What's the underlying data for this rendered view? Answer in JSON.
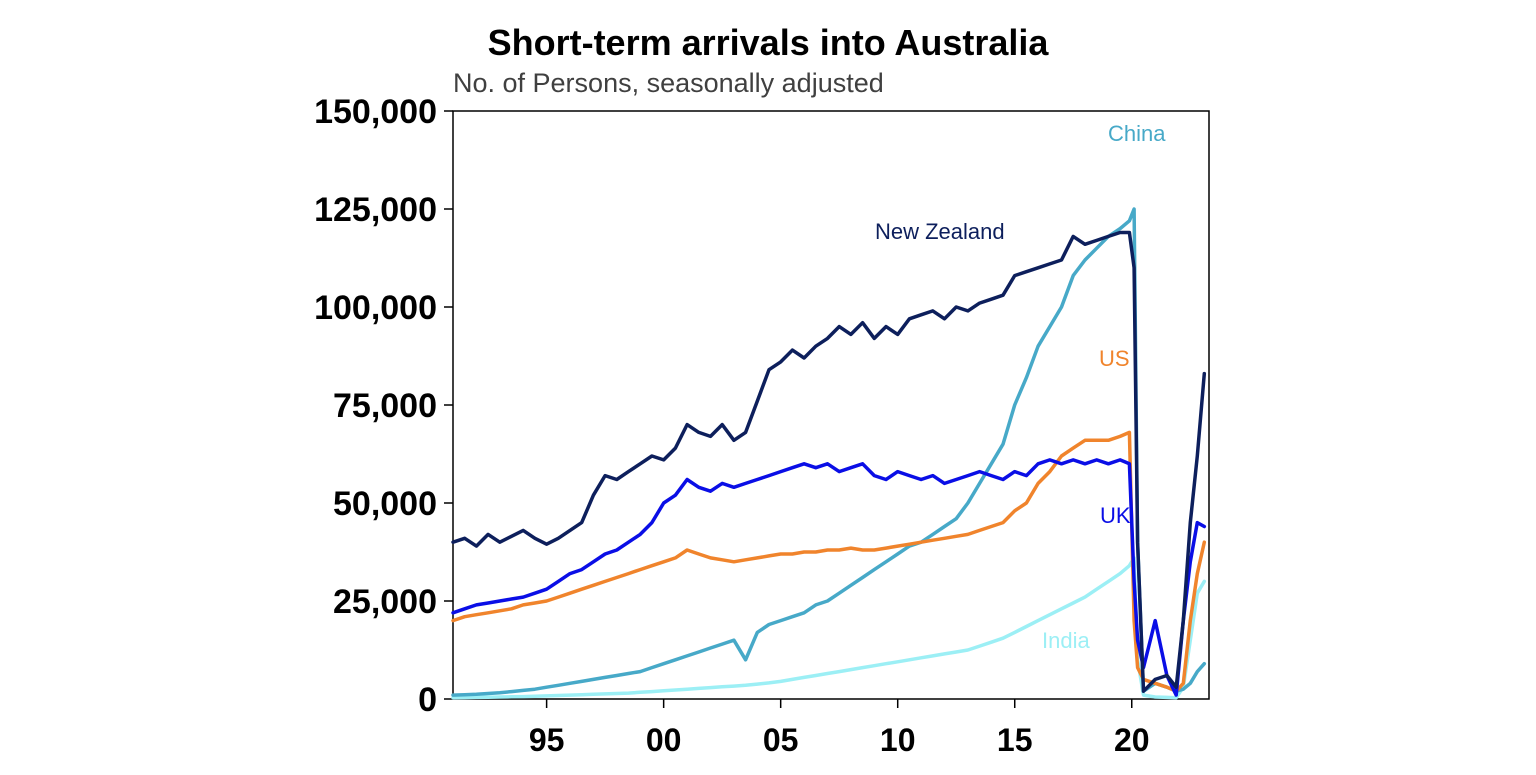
{
  "chart_data": {
    "type": "line",
    "title": "Short-term arrivals into Australia",
    "subtitle": "No. of Persons, seasonally adjusted",
    "xlabel": "",
    "ylabel": "",
    "xlim": [
      1991.0,
      2023.3
    ],
    "ylim": [
      0,
      150000
    ],
    "y_ticks": [
      0,
      25000,
      50000,
      75000,
      100000,
      125000,
      150000
    ],
    "y_tick_labels": [
      "0",
      "25,000",
      "50,000",
      "75,000",
      "100,000",
      "125,000",
      "150,000"
    ],
    "x_ticks": [
      1995,
      2000,
      2005,
      2010,
      2015,
      2020
    ],
    "x_tick_labels": [
      "95",
      "00",
      "05",
      "10",
      "15",
      "20"
    ],
    "grid": false,
    "legend": "inline labels",
    "series": [
      {
        "name": "New Zealand",
        "color": "#0d1f5c",
        "x": [
          1991.0,
          1991.5,
          1992.0,
          1992.5,
          1993.0,
          1993.5,
          1994.0,
          1994.5,
          1995.0,
          1995.5,
          1996.0,
          1996.5,
          1997.0,
          1997.5,
          1998.0,
          1998.5,
          1999.0,
          1999.5,
          2000.0,
          2000.5,
          2001.0,
          2001.5,
          2002.0,
          2002.5,
          2003.0,
          2003.5,
          2004.0,
          2004.5,
          2005.0,
          2005.5,
          2006.0,
          2006.5,
          2007.0,
          2007.5,
          2008.0,
          2008.5,
          2009.0,
          2009.5,
          2010.0,
          2010.5,
          2011.0,
          2011.5,
          2012.0,
          2012.5,
          2013.0,
          2013.5,
          2014.0,
          2014.5,
          2015.0,
          2015.5,
          2016.0,
          2016.5,
          2017.0,
          2017.5,
          2018.0,
          2018.5,
          2019.0,
          2019.5,
          2019.9,
          2020.1,
          2020.25,
          2020.5,
          2021.0,
          2021.5,
          2021.9,
          2022.2,
          2022.5,
          2022.8,
          2023.1
        ],
        "y": [
          40000,
          41000,
          39000,
          42000,
          40000,
          41500,
          43000,
          41000,
          39500,
          41000,
          43000,
          45000,
          52000,
          57000,
          56000,
          58000,
          60000,
          62000,
          61000,
          64000,
          70000,
          68000,
          67000,
          70000,
          66000,
          68000,
          76000,
          84000,
          86000,
          89000,
          87000,
          90000,
          92000,
          95000,
          93000,
          96000,
          92000,
          95000,
          93000,
          97000,
          98000,
          99000,
          97000,
          100000,
          99000,
          101000,
          102000,
          103000,
          108000,
          109000,
          110000,
          111000,
          112000,
          118000,
          116000,
          117000,
          118000,
          119000,
          119000,
          110000,
          40000,
          2000,
          5000,
          6000,
          3000,
          20000,
          45000,
          62000,
          83000
        ]
      },
      {
        "name": "UK",
        "color": "#0a0ee6",
        "x": [
          1991.0,
          1991.5,
          1992.0,
          1992.5,
          1993.0,
          1993.5,
          1994.0,
          1994.5,
          1995.0,
          1995.5,
          1996.0,
          1996.5,
          1997.0,
          1997.5,
          1998.0,
          1998.5,
          1999.0,
          1999.5,
          2000.0,
          2000.5,
          2001.0,
          2001.5,
          2002.0,
          2002.5,
          2003.0,
          2003.5,
          2004.0,
          2004.5,
          2005.0,
          2005.5,
          2006.0,
          2006.5,
          2007.0,
          2007.5,
          2008.0,
          2008.5,
          2009.0,
          2009.5,
          2010.0,
          2010.5,
          2011.0,
          2011.5,
          2012.0,
          2012.5,
          2013.0,
          2013.5,
          2014.0,
          2014.5,
          2015.0,
          2015.5,
          2016.0,
          2016.5,
          2017.0,
          2017.5,
          2018.0,
          2018.5,
          2019.0,
          2019.5,
          2019.9,
          2020.1,
          2020.25,
          2020.5,
          2021.0,
          2021.5,
          2021.9,
          2022.2,
          2022.5,
          2022.8,
          2023.1
        ],
        "y": [
          22000,
          23000,
          24000,
          24500,
          25000,
          25500,
          26000,
          27000,
          28000,
          30000,
          32000,
          33000,
          35000,
          37000,
          38000,
          40000,
          42000,
          45000,
          50000,
          52000,
          56000,
          54000,
          53000,
          55000,
          54000,
          55000,
          56000,
          57000,
          58000,
          59000,
          60000,
          59000,
          60000,
          58000,
          59000,
          60000,
          57000,
          56000,
          58000,
          57000,
          56000,
          57000,
          55000,
          56000,
          57000,
          58000,
          57000,
          56000,
          58000,
          57000,
          60000,
          61000,
          60000,
          61000,
          60000,
          61000,
          60000,
          61000,
          60000,
          30000,
          15000,
          8000,
          20000,
          6000,
          1000,
          20000,
          35000,
          45000,
          44000
        ]
      },
      {
        "name": "US",
        "color": "#f0842c",
        "x": [
          1991.0,
          1991.5,
          1992.0,
          1992.5,
          1993.0,
          1993.5,
          1994.0,
          1994.5,
          1995.0,
          1995.5,
          1996.0,
          1996.5,
          1997.0,
          1997.5,
          1998.0,
          1998.5,
          1999.0,
          1999.5,
          2000.0,
          2000.5,
          2001.0,
          2001.5,
          2002.0,
          2002.5,
          2003.0,
          2003.5,
          2004.0,
          2004.5,
          2005.0,
          2005.5,
          2006.0,
          2006.5,
          2007.0,
          2007.5,
          2008.0,
          2008.5,
          2009.0,
          2009.5,
          2010.0,
          2010.5,
          2011.0,
          2011.5,
          2012.0,
          2012.5,
          2013.0,
          2013.5,
          2014.0,
          2014.5,
          2015.0,
          2015.5,
          2016.0,
          2016.5,
          2017.0,
          2017.5,
          2018.0,
          2018.5,
          2019.0,
          2019.5,
          2019.9,
          2020.1,
          2020.25,
          2020.5,
          2021.0,
          2021.5,
          2021.9,
          2022.2,
          2022.5,
          2022.8,
          2023.1
        ],
        "y": [
          20000,
          21000,
          21500,
          22000,
          22500,
          23000,
          24000,
          24500,
          25000,
          26000,
          27000,
          28000,
          29000,
          30000,
          31000,
          32000,
          33000,
          34000,
          35000,
          36000,
          38000,
          37000,
          36000,
          35500,
          35000,
          35500,
          36000,
          36500,
          37000,
          37000,
          37500,
          37500,
          38000,
          38000,
          38500,
          38000,
          38000,
          38500,
          39000,
          39500,
          40000,
          40500,
          41000,
          41500,
          42000,
          43000,
          44000,
          45000,
          48000,
          50000,
          55000,
          58000,
          62000,
          64000,
          66000,
          66000,
          66000,
          67000,
          68000,
          20000,
          8000,
          5000,
          4000,
          3000,
          2000,
          4000,
          20000,
          32000,
          40000
        ]
      },
      {
        "name": "China",
        "color": "#47a9c8",
        "x": [
          1991.0,
          1991.5,
          1992.0,
          1992.5,
          1993.0,
          1993.5,
          1994.0,
          1994.5,
          1995.0,
          1995.5,
          1996.0,
          1996.5,
          1997.0,
          1997.5,
          1998.0,
          1998.5,
          1999.0,
          1999.5,
          2000.0,
          2000.5,
          2001.0,
          2001.5,
          2002.0,
          2002.5,
          2003.0,
          2003.5,
          2004.0,
          2004.5,
          2005.0,
          2005.5,
          2006.0,
          2006.5,
          2007.0,
          2007.5,
          2008.0,
          2008.5,
          2009.0,
          2009.5,
          2010.0,
          2010.5,
          2011.0,
          2011.5,
          2012.0,
          2012.5,
          2013.0,
          2013.5,
          2014.0,
          2014.5,
          2015.0,
          2015.5,
          2016.0,
          2016.5,
          2017.0,
          2017.5,
          2018.0,
          2018.5,
          2019.0,
          2019.5,
          2019.9,
          2020.1,
          2020.25,
          2020.5,
          2021.0,
          2021.5,
          2021.9,
          2022.2,
          2022.5,
          2022.8,
          2023.1
        ],
        "y": [
          1000,
          1100,
          1200,
          1400,
          1600,
          1900,
          2200,
          2500,
          3000,
          3500,
          4000,
          4500,
          5000,
          5500,
          6000,
          6500,
          7000,
          8000,
          9000,
          10000,
          11000,
          12000,
          13000,
          14000,
          15000,
          10000,
          17000,
          19000,
          20000,
          21000,
          22000,
          24000,
          25000,
          27000,
          29000,
          31000,
          33000,
          35000,
          37000,
          39000,
          40000,
          42000,
          44000,
          46000,
          50000,
          55000,
          60000,
          65000,
          75000,
          82000,
          90000,
          95000,
          100000,
          108000,
          112000,
          115000,
          118000,
          120000,
          122000,
          125000,
          40000,
          2000,
          4000,
          3000,
          2000,
          2500,
          4000,
          7000,
          9000
        ]
      },
      {
        "name": "India",
        "color": "#9ceff5",
        "x": [
          1991.0,
          1991.5,
          1992.0,
          1992.5,
          1993.0,
          1993.5,
          1994.0,
          1994.5,
          1995.0,
          1995.5,
          1996.0,
          1996.5,
          1997.0,
          1997.5,
          1998.0,
          1998.5,
          1999.0,
          1999.5,
          2000.0,
          2000.5,
          2001.0,
          2001.5,
          2002.0,
          2002.5,
          2003.0,
          2003.5,
          2004.0,
          2004.5,
          2005.0,
          2005.5,
          2006.0,
          2006.5,
          2007.0,
          2007.5,
          2008.0,
          2008.5,
          2009.0,
          2009.5,
          2010.0,
          2010.5,
          2011.0,
          2011.5,
          2012.0,
          2012.5,
          2013.0,
          2013.5,
          2014.0,
          2014.5,
          2015.0,
          2015.5,
          2016.0,
          2016.5,
          2017.0,
          2017.5,
          2018.0,
          2018.5,
          2019.0,
          2019.5,
          2019.9,
          2020.1,
          2020.25,
          2020.5,
          2021.0,
          2021.5,
          2021.9,
          2022.2,
          2022.5,
          2022.8,
          2023.1
        ],
        "y": [
          300,
          350,
          400,
          450,
          500,
          550,
          600,
          700,
          800,
          900,
          1000,
          1100,
          1200,
          1300,
          1400,
          1500,
          1700,
          1900,
          2100,
          2300,
          2500,
          2700,
          2900,
          3100,
          3300,
          3500,
          3800,
          4100,
          4500,
          5000,
          5500,
          6000,
          6500,
          7000,
          7500,
          8000,
          8500,
          9000,
          9500,
          10000,
          10500,
          11000,
          11500,
          12000,
          12500,
          13500,
          14500,
          15500,
          17000,
          18500,
          20000,
          21500,
          23000,
          24500,
          26000,
          28000,
          30000,
          32000,
          34000,
          36000,
          10000,
          1000,
          500,
          400,
          300,
          3000,
          15000,
          27000,
          30000
        ]
      }
    ],
    "annotations": [
      {
        "text": "New Zealand",
        "series": "New Zealand"
      },
      {
        "text": "China",
        "series": "China"
      },
      {
        "text": "US",
        "series": "US"
      },
      {
        "text": "UK",
        "series": "UK"
      },
      {
        "text": "India",
        "series": "India"
      }
    ]
  }
}
